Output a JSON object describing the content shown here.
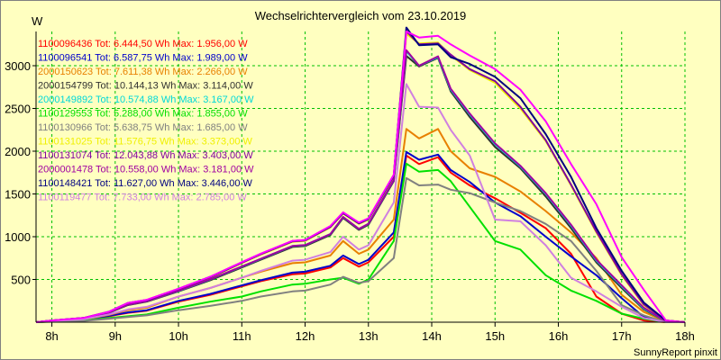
{
  "title": "Wechselrichtervergleich vom 23.10.2019",
  "y_unit": "W",
  "footer": "SunnyReport pinxit",
  "chart_data": {
    "type": "line",
    "title": "Wechselrichtervergleich vom 23.10.2019",
    "ylabel": "W",
    "xlabel": "",
    "xlim": [
      8,
      18
    ],
    "ylim": [
      0,
      3400
    ],
    "x_ticks": [
      {
        "value": 8,
        "label": "8h"
      },
      {
        "value": 9,
        "label": "9h"
      },
      {
        "value": 10,
        "label": "10h"
      },
      {
        "value": 11,
        "label": "11h"
      },
      {
        "value": 12,
        "label": "12h"
      },
      {
        "value": 13,
        "label": "13h"
      },
      {
        "value": 14,
        "label": "14h"
      },
      {
        "value": 15,
        "label": "15h"
      },
      {
        "value": 16,
        "label": "16h"
      },
      {
        "value": 17,
        "label": "17h"
      },
      {
        "value": 18,
        "label": "18h"
      }
    ],
    "y_ticks": [
      {
        "value": 500,
        "label": "500"
      },
      {
        "value": 1000,
        "label": "1000"
      },
      {
        "value": 1500,
        "label": "1500"
      },
      {
        "value": 2000,
        "label": "2000"
      },
      {
        "value": 2500,
        "label": "2500"
      },
      {
        "value": 3000,
        "label": "3000"
      }
    ],
    "grid": true,
    "legend_position": "top-left",
    "x": [
      7.75,
      8.0,
      8.5,
      8.9,
      9.2,
      9.5,
      10.0,
      10.5,
      11.0,
      11.3,
      11.8,
      12.0,
      12.4,
      12.6,
      12.85,
      13.0,
      13.4,
      13.6,
      13.8,
      14.1,
      14.3,
      14.6,
      15.0,
      15.4,
      15.8,
      16.2,
      16.6,
      17.0,
      17.35,
      17.7,
      18.0
    ],
    "series": [
      {
        "name": "1100096436",
        "label": "1100096436 Tot: 6.444,50 Wh Max: 1.956,00 W",
        "color": "#ff0000",
        "values": [
          0,
          10,
          25,
          70,
          110,
          135,
          240,
          320,
          420,
          480,
          560,
          570,
          640,
          750,
          650,
          700,
          1000,
          1950,
          1850,
          1930,
          1750,
          1600,
          1450,
          1280,
          1100,
          800,
          300,
          100,
          20,
          0,
          0
        ]
      },
      {
        "name": "1100096541",
        "label": "1100096541 Tot: 6.587,75 Wh Max: 1.989,00 W",
        "color": "#0000cc",
        "values": [
          0,
          12,
          28,
          75,
          115,
          140,
          250,
          330,
          430,
          490,
          580,
          590,
          660,
          780,
          680,
          730,
          1050,
          1990,
          1900,
          1960,
          1780,
          1640,
          1400,
          1240,
          1000,
          770,
          550,
          280,
          60,
          5,
          0
        ]
      },
      {
        "name": "2000150623",
        "label": "2000150623 Tot: 7.611,38 Wh Max: 2.266,00 W",
        "color": "#e88000",
        "values": [
          0,
          14,
          32,
          85,
          140,
          170,
          300,
          400,
          520,
          590,
          690,
          700,
          780,
          950,
          800,
          850,
          1200,
          2260,
          2150,
          2260,
          2000,
          1800,
          1700,
          1530,
          1300,
          1050,
          750,
          320,
          120,
          10,
          0
        ]
      },
      {
        "name": "2000154799",
        "label": "2000154799 Tot: 10.144,13 Wh Max: 3.114,00 W",
        "color": "#303030",
        "values": [
          0,
          18,
          45,
          110,
          200,
          240,
          360,
          490,
          640,
          730,
          880,
          890,
          1020,
          1220,
          1080,
          1140,
          1650,
          3114,
          2990,
          3090,
          2700,
          2400,
          2050,
          1800,
          1470,
          1100,
          700,
          400,
          150,
          10,
          0
        ]
      },
      {
        "name": "2000149892",
        "label": "2000149892 Tot: 10.574,88 Wh Max: 3.167,00 W",
        "color": "#00d8d8",
        "values": [
          0,
          18,
          46,
          112,
          205,
          245,
          365,
          500,
          650,
          740,
          890,
          900,
          1030,
          1230,
          1090,
          1150,
          1660,
          3167,
          3000,
          3100,
          2720,
          2430,
          2080,
          1820,
          1500,
          1130,
          720,
          420,
          160,
          10,
          0
        ]
      },
      {
        "name": "1100129553",
        "label": "1100129553 Tot: 5.288,00 Wh Max: 1.855,00 W",
        "color": "#00e000",
        "values": [
          0,
          8,
          18,
          50,
          70,
          90,
          170,
          240,
          300,
          360,
          440,
          450,
          500,
          520,
          450,
          500,
          950,
          1855,
          1760,
          1780,
          1650,
          1350,
          950,
          850,
          550,
          370,
          250,
          100,
          40,
          0,
          0
        ]
      },
      {
        "name": "1100130966",
        "label": "1100130966 Tot: 5.638,75 Wh Max: 1.685,00 W",
        "color": "#808080",
        "values": [
          0,
          6,
          15,
          40,
          60,
          80,
          140,
          190,
          250,
          300,
          360,
          370,
          440,
          530,
          460,
          480,
          750,
          1685,
          1600,
          1610,
          1550,
          1510,
          1400,
          1300,
          1150,
          950,
          600,
          200,
          80,
          0,
          0
        ]
      },
      {
        "name": "1100131025",
        "label": "1100131025 Tot: 11.576,75 Wh Max: 3.373,00 W",
        "color": "#f0f000",
        "values": [
          0,
          20,
          50,
          120,
          220,
          255,
          385,
          520,
          690,
          790,
          940,
          950,
          1110,
          1270,
          1150,
          1200,
          1700,
          3373,
          3260,
          3270,
          3120,
          2950,
          2800,
          2500,
          2120,
          1600,
          1050,
          550,
          200,
          20,
          0
        ]
      },
      {
        "name": "1100131074",
        "label": "1100131074 Tot: 12.043,88 Wh Max: 3.403,00 W",
        "color": "#8000a0",
        "values": [
          0,
          20,
          50,
          120,
          222,
          258,
          388,
          525,
          695,
          795,
          945,
          955,
          1115,
          1275,
          1155,
          1205,
          1710,
          3403,
          3250,
          3260,
          3130,
          2960,
          2820,
          2520,
          2130,
          1610,
          1060,
          560,
          210,
          20,
          0
        ]
      },
      {
        "name": "2000001478",
        "label": "2000001478 Tot: 10.558,00 Wh Max: 3.181,00 W",
        "color": "#a000a0",
        "values": [
          0,
          18,
          46,
          112,
          205,
          245,
          368,
          502,
          652,
          742,
          892,
          902,
          1032,
          1232,
          1092,
          1152,
          1662,
          3181,
          3000,
          3110,
          2730,
          2440,
          2090,
          1830,
          1510,
          1140,
          730,
          430,
          170,
          10,
          0
        ]
      },
      {
        "name": "1100148421",
        "label": "1100148421 Tot: 11.627,00 Wh Max: 3.446,00 W",
        "color": "#000080",
        "values": [
          0,
          20,
          50,
          122,
          225,
          260,
          390,
          530,
          700,
          800,
          950,
          960,
          1120,
          1280,
          1160,
          1210,
          1720,
          3446,
          3240,
          3250,
          3100,
          3020,
          2870,
          2620,
          2200,
          1700,
          1100,
          600,
          230,
          20,
          0
        ]
      },
      {
        "name": "1100119477",
        "label": "1100119477 Tot: 7.733,00 Wh Max: 2.785,00 W",
        "color": "#d080e0",
        "values": [
          0,
          14,
          35,
          90,
          150,
          180,
          300,
          400,
          520,
          600,
          720,
          730,
          820,
          1000,
          850,
          900,
          1400,
          2785,
          2520,
          2510,
          2250,
          1950,
          1200,
          1180,
          900,
          520,
          360,
          180,
          50,
          0,
          0
        ]
      },
      {
        "name": "",
        "label": "",
        "color": "#ff00ff",
        "values": [
          0,
          20,
          50,
          122,
          225,
          262,
          392,
          532,
          702,
          802,
          952,
          962,
          1125,
          1285,
          1165,
          1215,
          1725,
          3400,
          3330,
          3350,
          3250,
          3120,
          2960,
          2720,
          2350,
          1850,
          1380,
          760,
          380,
          20,
          0
        ]
      }
    ]
  }
}
